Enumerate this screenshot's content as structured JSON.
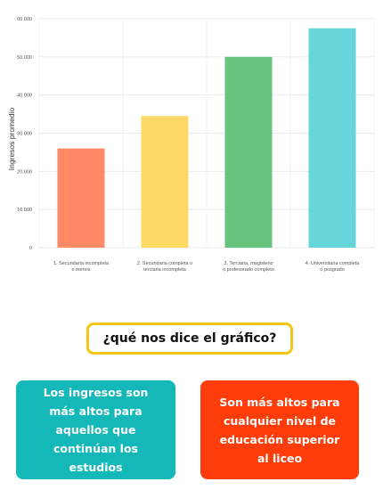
{
  "chart_data": {
    "type": "bar",
    "ylabel": "Ingresos promedio",
    "xlabel": "",
    "ylim": [
      0,
      60000
    ],
    "y_ticks": [
      0,
      10000,
      20000,
      30000,
      40000,
      50000,
      60000
    ],
    "y_tick_labels": [
      "0",
      "10.000",
      "20.000",
      "30.000",
      "40.000",
      "50.000",
      "60.000"
    ],
    "grid": true,
    "categories": [
      [
        "1. Secundaria incompleta",
        "o menos"
      ],
      [
        "2. Secundaria completa o",
        "terciaria incompleta"
      ],
      [
        "3. Terciaria, magisterio",
        "o profesorado completo"
      ],
      [
        "4. Universitaria completa",
        "o posgrado"
      ]
    ],
    "values": [
      26000,
      34500,
      50000,
      57500
    ],
    "colors": [
      "#ff8a65",
      "#ffd966",
      "#66c47e",
      "#66d6da"
    ]
  },
  "question": "¿qué nos dice el gráfico?",
  "cards": {
    "left": "Los ingresos son más altos para aquellos que continúan los estudios",
    "right": "Son más altos para cualquier nivel de educación superior al liceo"
  },
  "colors": {
    "question_border": "#f5c518",
    "card_left": "#14b8b8",
    "card_right": "#ff3d0a"
  }
}
